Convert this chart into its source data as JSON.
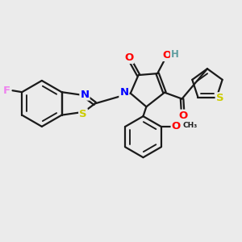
{
  "bg_color": "#ebebeb",
  "bond_color": "#1a1a1a",
  "bond_width": 1.6,
  "atom_colors": {
    "F": "#ee82ee",
    "S": "#cccc00",
    "N": "#0000ff",
    "O": "#ff0000",
    "H": "#5f9ea0",
    "C": "#1a1a1a"
  },
  "font_size": 8.5
}
